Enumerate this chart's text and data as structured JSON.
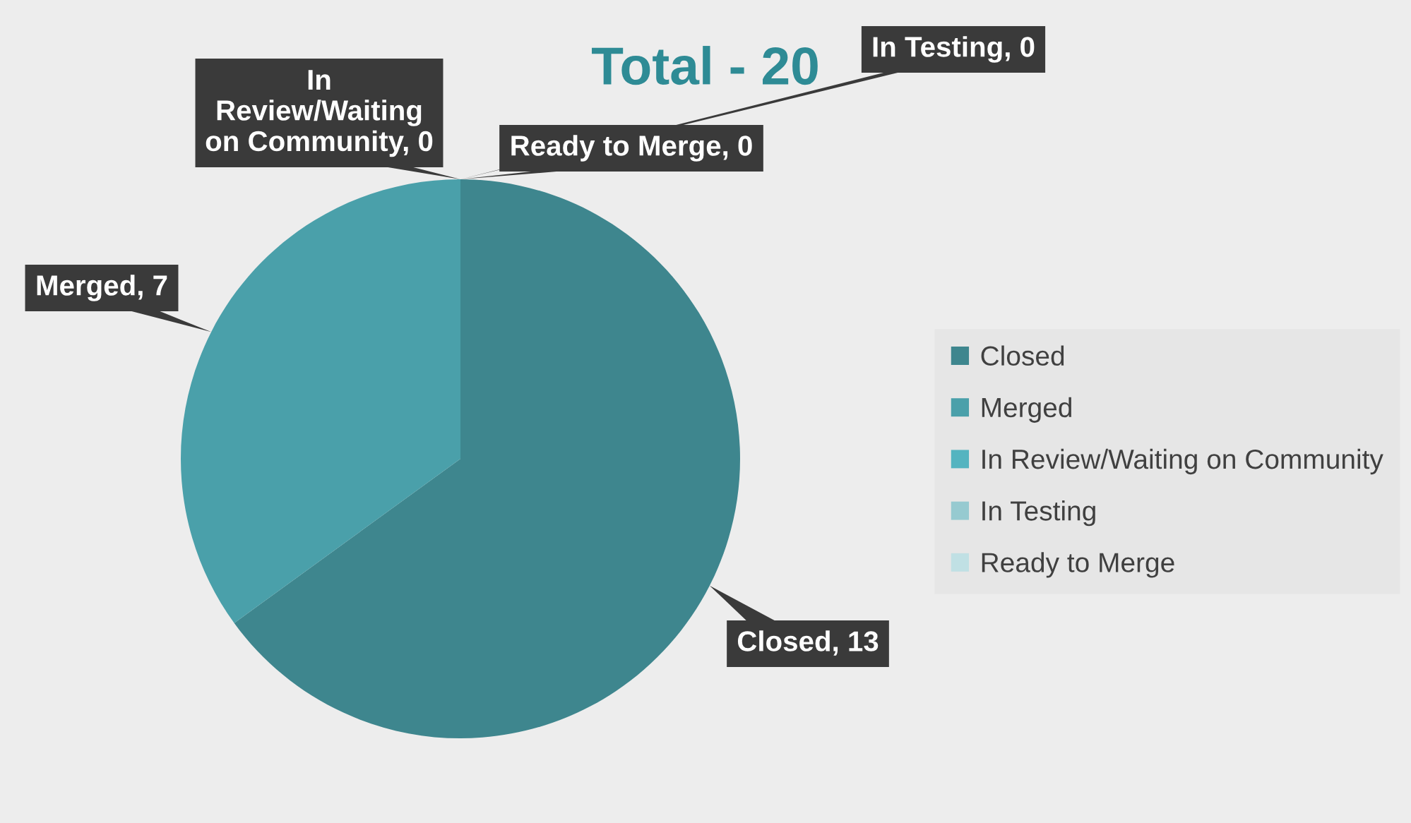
{
  "chart_data": {
    "type": "pie",
    "title": "Total - 20",
    "categories": [
      "Closed",
      "Merged",
      "In Review/Waiting on Community",
      "In Testing",
      "Ready to Merge"
    ],
    "values": [
      13,
      7,
      0,
      0,
      0
    ],
    "value_labels": [
      "Closed, 13",
      "Merged, 7",
      "In Review/Waiting on Community, 0",
      "In Testing, 0",
      "Ready to Merge, 0"
    ],
    "colors": [
      "#3e868e",
      "#4aa0aa",
      "#54b4c0",
      "#96cad0",
      "#c0e0e4"
    ],
    "legend": "right"
  }
}
